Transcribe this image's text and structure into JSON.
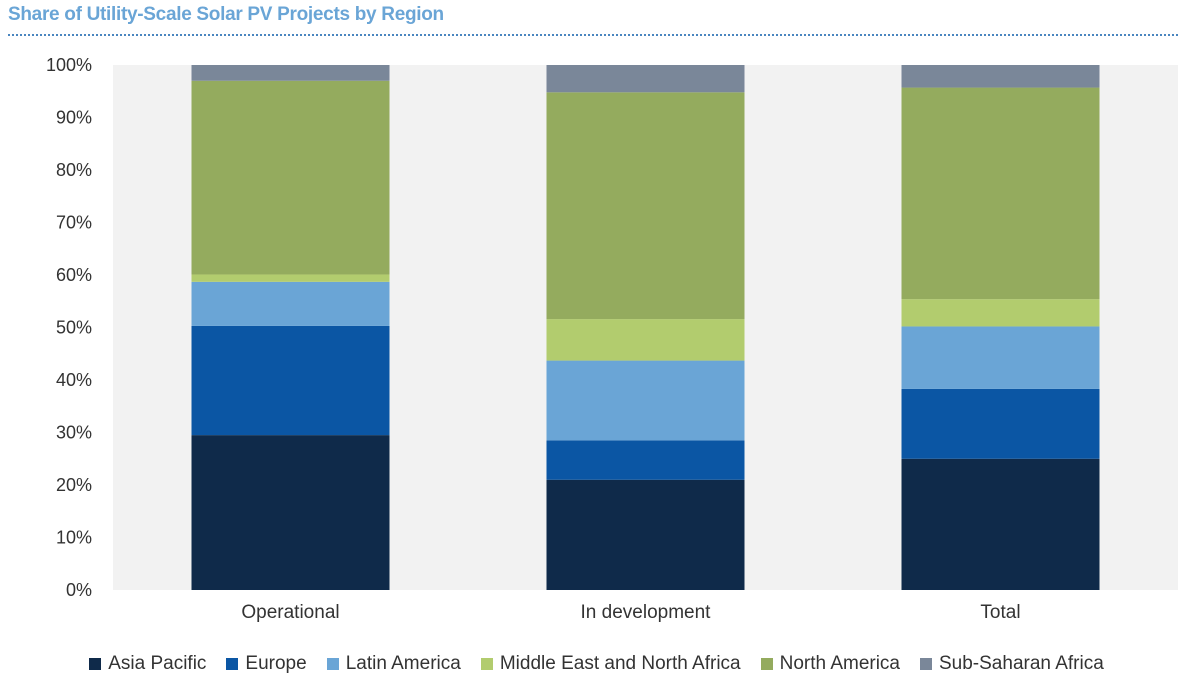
{
  "chart_data": {
    "type": "bar",
    "stacked": true,
    "title": "Share of Utility-Scale Solar PV Projects by Region",
    "categories": [
      "Operational",
      "In development",
      "Total"
    ],
    "ylim": [
      0,
      100
    ],
    "yticks": [
      "0%",
      "10%",
      "20%",
      "30%",
      "40%",
      "50%",
      "60%",
      "70%",
      "80%",
      "90%",
      "100%"
    ],
    "legend_position": "bottom",
    "series": [
      {
        "name": "Asia Pacific",
        "color": "#0f2a4a",
        "values": [
          29.5,
          21,
          25
        ]
      },
      {
        "name": "Europe",
        "color": "#0b56a4",
        "values": [
          20.8,
          7.5,
          13.3
        ]
      },
      {
        "name": "Latin America",
        "color": "#6aa5d6",
        "values": [
          8.4,
          15.2,
          11.9
        ]
      },
      {
        "name": "Middle East and North Africa",
        "color": "#b2cc6e",
        "values": [
          1.4,
          7.9,
          5.2
        ]
      },
      {
        "name": "North America",
        "color": "#94ab5e",
        "values": [
          36.9,
          43.2,
          40.3
        ]
      },
      {
        "name": "Sub-Saharan Africa",
        "color": "#7a8799",
        "values": [
          3.0,
          5.2,
          4.3
        ]
      }
    ]
  }
}
